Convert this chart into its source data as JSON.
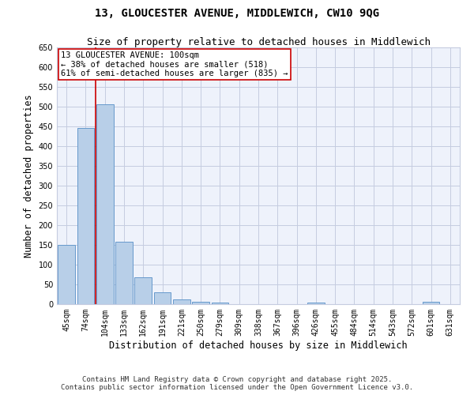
{
  "title_line1": "13, GLOUCESTER AVENUE, MIDDLEWICH, CW10 9QG",
  "title_line2": "Size of property relative to detached houses in Middlewich",
  "xlabel": "Distribution of detached houses by size in Middlewich",
  "ylabel": "Number of detached properties",
  "categories": [
    "45sqm",
    "74sqm",
    "104sqm",
    "133sqm",
    "162sqm",
    "191sqm",
    "221sqm",
    "250sqm",
    "279sqm",
    "309sqm",
    "338sqm",
    "367sqm",
    "396sqm",
    "426sqm",
    "455sqm",
    "484sqm",
    "514sqm",
    "543sqm",
    "572sqm",
    "601sqm",
    "631sqm"
  ],
  "values": [
    150,
    447,
    507,
    158,
    68,
    30,
    13,
    7,
    5,
    0,
    0,
    0,
    0,
    5,
    0,
    0,
    0,
    0,
    0,
    7,
    0
  ],
  "bar_color": "#b8cfe8",
  "bar_edge_color": "#6699cc",
  "vline_color": "#cc0000",
  "annotation_text": "13 GLOUCESTER AVENUE: 100sqm\n← 38% of detached houses are smaller (518)\n61% of semi-detached houses are larger (835) →",
  "annotation_box_color": "#ffffff",
  "annotation_box_edge_color": "#cc0000",
  "ylim": [
    0,
    650
  ],
  "yticks": [
    0,
    50,
    100,
    150,
    200,
    250,
    300,
    350,
    400,
    450,
    500,
    550,
    600,
    650
  ],
  "footer_line1": "Contains HM Land Registry data © Crown copyright and database right 2025.",
  "footer_line2": "Contains public sector information licensed under the Open Government Licence v3.0.",
  "bg_color": "#eef2fb",
  "grid_color": "#c5cce0",
  "title_fontsize": 10,
  "subtitle_fontsize": 9,
  "axis_label_fontsize": 8.5,
  "tick_fontsize": 7,
  "footer_fontsize": 6.5,
  "annotation_fontsize": 7.5
}
